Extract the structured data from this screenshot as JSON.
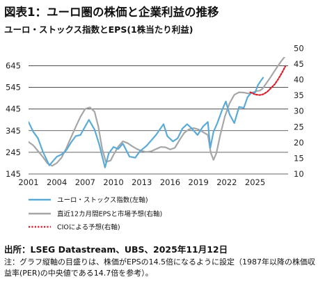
{
  "title": "図表1：ユーロ圏の株価と企業利益の推移",
  "subtitle": "ユーロ・ストックス指数とEPS(1株当たり利益)",
  "source": "出所：LSEG Datastream、UBS、2025年11月12日",
  "note": "注：グラフ縦軸の目盛りは、株価がEPSの14.5倍になるように設定（1987年以降の株価収益率(PER)の中央値である14.7倍を参考）。",
  "colors": {
    "index": "#5aaad8",
    "eps": "#a6a6a6",
    "cio": "#d9202a",
    "grid": "#333333"
  },
  "chart_data": {
    "type": "line",
    "grid": "horizontal",
    "legend_position": "bottom-left",
    "x_ticks": [
      "2001",
      "2004",
      "2007",
      "2010",
      "2013",
      "2016",
      "2019",
      "2022",
      "2025"
    ],
    "xlim": [
      2001,
      2028.5
    ],
    "y_left": {
      "ticks": [
        "145",
        "245",
        "345",
        "445",
        "545",
        "645"
      ],
      "lim": [
        145,
        685
      ]
    },
    "y_right": {
      "ticks": [
        "10",
        "15",
        "20",
        "25",
        "30",
        "35",
        "40",
        "45",
        "50"
      ],
      "lim": [
        10,
        47.2
      ]
    },
    "series": [
      {
        "name": "ユーロ・ストックス指数(左軸)",
        "axis": "left",
        "style": "solid",
        "x": [
          2001,
          2001.5,
          2002,
          2002.5,
          2003.2,
          2003.6,
          2004,
          2004.5,
          2005,
          2005.5,
          2006,
          2006.5,
          2007,
          2007.4,
          2008,
          2008.5,
          2009.1,
          2009.5,
          2010,
          2010.5,
          2011,
          2011.7,
          2012.3,
          2012.8,
          2013.5,
          2014,
          2014.5,
          2015.3,
          2015.7,
          2016.3,
          2016.8,
          2017.3,
          2017.8,
          2018.3,
          2018.9,
          2019.5,
          2020,
          2020.25,
          2020.6,
          2021,
          2021.5,
          2021.9,
          2022.3,
          2022.8,
          2023.3,
          2023.8,
          2024.2,
          2024.6,
          2025.0,
          2025.3,
          2025.6,
          2025.85
        ],
        "values": [
          385,
          340,
          310,
          250,
          185,
          205,
          225,
          235,
          255,
          290,
          320,
          325,
          365,
          395,
          350,
          280,
          175,
          240,
          270,
          260,
          285,
          225,
          220,
          250,
          275,
          300,
          325,
          375,
          320,
          295,
          310,
          355,
          375,
          355,
          325,
          365,
          385,
          265,
          340,
          380,
          440,
          480,
          420,
          380,
          455,
          450,
          500,
          520,
          520,
          555,
          575,
          590
        ]
      },
      {
        "name": "直近12カ月間EPSと市場予想(右軸)",
        "axis": "right",
        "style": "solid",
        "x": [
          2001,
          2001.5,
          2002,
          2002.5,
          2003,
          2003.5,
          2004,
          2004.5,
          2005,
          2005.5,
          2006,
          2006.5,
          2007,
          2007.5,
          2008,
          2008.4,
          2008.8,
          2009.2,
          2009.7,
          2010,
          2010.5,
          2011,
          2011.5,
          2012,
          2012.5,
          2013,
          2013.5,
          2014,
          2014.5,
          2015,
          2015.5,
          2016,
          2016.5,
          2017,
          2017.5,
          2018,
          2018.5,
          2019,
          2019.5,
          2020,
          2020.3,
          2020.6,
          2020.9,
          2021.3,
          2021.8,
          2022.3,
          2022.8,
          2023.3,
          2023.8,
          2024.3,
          2024.8,
          2025.2,
          2025.5,
          2025.8,
          2026.2,
          2026.6,
          2027.0,
          2027.4,
          2027.8,
          2028.2
        ],
        "values": [
          20.2,
          19.1,
          17.3,
          15.5,
          13.4,
          12.6,
          13.5,
          15.2,
          18.2,
          21.6,
          25.0,
          28.2,
          30.7,
          31.2,
          29.8,
          25.0,
          18.0,
          13.8,
          14.3,
          16.1,
          18.7,
          20.4,
          19.8,
          18.8,
          17.9,
          17.3,
          17.0,
          17.2,
          17.9,
          18.6,
          18.5,
          17.8,
          18.3,
          20.8,
          23.1,
          24.2,
          24.6,
          24.2,
          23.3,
          22.4,
          16.8,
          14.5,
          16.6,
          22.2,
          28.3,
          32.5,
          35.2,
          36.0,
          35.9,
          35.6,
          36.0,
          36.4,
          36.5,
          37.2,
          38.9,
          40.6,
          42.5,
          44.3,
          46.0,
          47.5
        ]
      },
      {
        "name": "CIOによる予想(右軸)",
        "axis": "right",
        "style": "dotted",
        "x": [
          2024.5,
          2025.0,
          2025.5,
          2025.9,
          2026.3,
          2026.7,
          2027.1,
          2027.5,
          2027.9,
          2028.2
        ],
        "values": [
          36.0,
          35.3,
          35.1,
          35.4,
          36.2,
          37.4,
          38.6,
          40.4,
          42.5,
          44.2
        ]
      }
    ]
  }
}
